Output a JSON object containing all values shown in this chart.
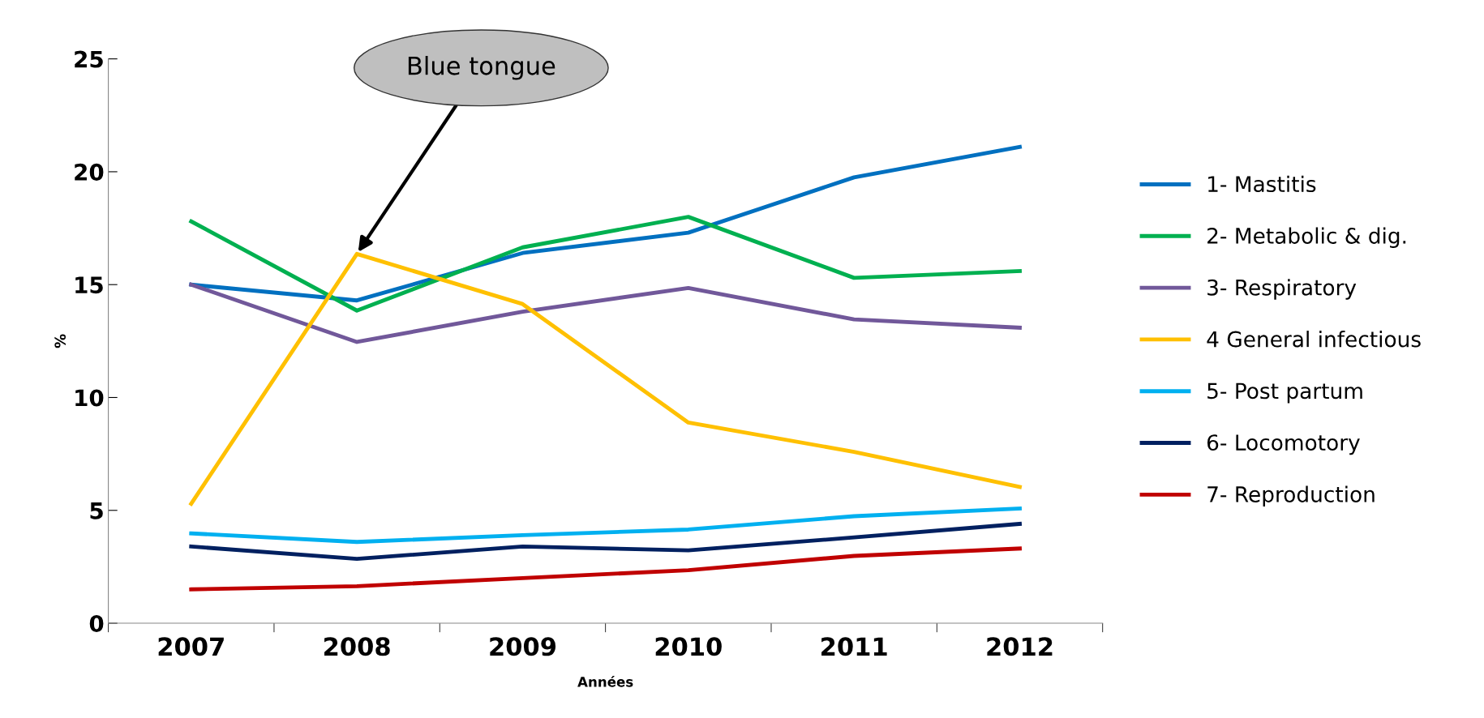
{
  "chart_data": {
    "type": "line",
    "xlabel": "Années",
    "ylabel": "%",
    "categories": [
      "2007",
      "2008",
      "2009",
      "2010",
      "2011",
      "2012"
    ],
    "series": [
      {
        "name": "1- Mastitis",
        "color": "#0070c0",
        "values": [
          15.0,
          14.3,
          16.4,
          17.3,
          19.75,
          21.1
        ]
      },
      {
        "name": "2- Metabolic & dig.",
        "color": "#00b050",
        "values": [
          17.8,
          13.85,
          16.65,
          18.0,
          15.3,
          15.6
        ]
      },
      {
        "name": "3- Respiratory",
        "color": "#71589a",
        "values": [
          15.0,
          12.46,
          13.8,
          14.85,
          13.46,
          13.09
        ]
      },
      {
        "name": "4 General infectious",
        "color": "#ffc000",
        "values": [
          5.29,
          16.36,
          14.14,
          8.89,
          7.59,
          6.04
        ]
      },
      {
        "name": "5- Post partum",
        "color": "#00b0f0",
        "values": [
          3.98,
          3.6,
          3.9,
          4.15,
          4.74,
          5.08
        ]
      },
      {
        "name": "6- Locomotory",
        "color": "#002060",
        "values": [
          3.4,
          2.85,
          3.4,
          3.23,
          3.8,
          4.4
        ]
      },
      {
        "name": "7- Reproduction",
        "color": "#c00000",
        "values": [
          1.5,
          1.64,
          2.0,
          2.35,
          2.98,
          3.31
        ]
      }
    ],
    "ylim": [
      0,
      25
    ],
    "yticks": [
      0,
      5,
      10,
      15,
      20,
      25
    ],
    "grid": false,
    "legend": "right",
    "marker": "none",
    "line_style": "solid",
    "annotations": [
      {
        "text": "Blue tongue",
        "x": "2008",
        "y": 16.36
      }
    ]
  }
}
